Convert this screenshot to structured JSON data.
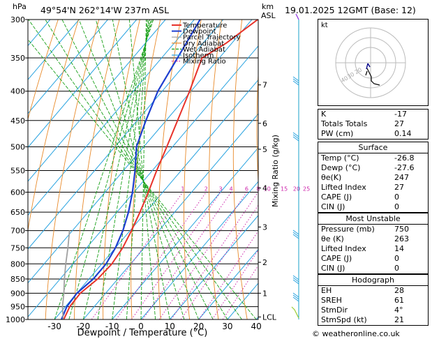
{
  "header": {
    "location": "49°54'N  262°14'W  237m  ASL",
    "datetime": "19.01.2025  12GMT  (Base: 12)",
    "hpa_label": "hPa",
    "km_label": "km",
    "asl_label": "ASL"
  },
  "chart_data": {
    "type": "line",
    "title": "",
    "xlabel": "Dewpoint / Temperature (°C)",
    "ylabel": "Mixing Ratio (g/kg)",
    "xlim": [
      -40,
      40
    ],
    "ylim_hpa": [
      1000,
      300
    ],
    "pressure_levels": [
      300,
      350,
      400,
      450,
      500,
      550,
      600,
      650,
      700,
      750,
      800,
      850,
      900,
      950,
      1000
    ],
    "temp_ticks": [
      -30,
      -20,
      -10,
      0,
      10,
      20,
      30,
      40
    ],
    "km_ticks": [
      {
        "label": "7",
        "p": 390
      },
      {
        "label": "6",
        "p": 455
      },
      {
        "label": "5",
        "p": 505
      },
      {
        "label": "4",
        "p": 590
      },
      {
        "label": "3",
        "p": 690
      },
      {
        "label": "2",
        "p": 795
      },
      {
        "label": "1",
        "p": 900
      },
      {
        "label": "LCL",
        "p": 990
      }
    ],
    "mixing_ratio_labels": [
      "1",
      "2",
      "3",
      "4",
      "6",
      "8",
      "10",
      "15",
      "20",
      "25"
    ],
    "mixing_ratio_values": [
      1,
      2,
      3,
      4,
      6,
      8,
      10,
      15,
      20,
      25
    ],
    "legend": [
      "Temperature",
      "Dewpoint",
      "Parcel Trajectory",
      "Dry Adiabat",
      "Wet Adiabat",
      "Isotherm",
      "Mixing Ratio"
    ],
    "legend_placement": "top",
    "series": [
      {
        "name": "Temperature",
        "color": "#e8322a",
        "points": [
          [
            1000,
            -26.8
          ],
          [
            950,
            -28.5
          ],
          [
            900,
            -28.8
          ],
          [
            850,
            -27.0
          ],
          [
            800,
            -26.5
          ],
          [
            750,
            -27.5
          ],
          [
            700,
            -29.5
          ],
          [
            650,
            -32.0
          ],
          [
            600,
            -35.0
          ],
          [
            550,
            -38.5
          ],
          [
            500,
            -42.0
          ],
          [
            450,
            -46.0
          ],
          [
            400,
            -50.5
          ],
          [
            350,
            -56.0
          ],
          [
            330,
            -52.0
          ],
          [
            300,
            -48.0
          ]
        ]
      },
      {
        "name": "Dewpoint",
        "color": "#1e3fd0",
        "points": [
          [
            1000,
            -27.6
          ],
          [
            950,
            -29.5
          ],
          [
            900,
            -30.0
          ],
          [
            850,
            -28.5
          ],
          [
            800,
            -28.5
          ],
          [
            750,
            -30.0
          ],
          [
            700,
            -32.5
          ],
          [
            650,
            -36.0
          ],
          [
            600,
            -40.5
          ],
          [
            550,
            -46.0
          ],
          [
            500,
            -52.5
          ],
          [
            450,
            -57.0
          ],
          [
            400,
            -61.5
          ],
          [
            350,
            -64.5
          ],
          [
            300,
            -68.0
          ]
        ]
      },
      {
        "name": "Parcel Trajectory",
        "color": "#a0a0a0",
        "points": [
          [
            1000,
            -27.0
          ],
          [
            950,
            -31.0
          ],
          [
            900,
            -34.5
          ],
          [
            850,
            -38.5
          ],
          [
            800,
            -42.5
          ],
          [
            750,
            -46.5
          ],
          [
            700,
            -51.0
          ]
        ]
      }
    ],
    "colors": {
      "dry_adiabat": "#e88a2a",
      "wet_adiabat": "#18a018",
      "isotherm": "#29a3e0",
      "mixing_ratio": "#cc22aa",
      "grid": "#000000"
    }
  },
  "hodograph": {
    "unit": "kt",
    "ring_labels": [
      "40",
      "30",
      "20"
    ]
  },
  "indices": {
    "k": {
      "label": "K",
      "value": "-17"
    },
    "totals": {
      "label": "Totals Totals",
      "value": "27"
    },
    "pw": {
      "label": "PW (cm)",
      "value": "0.14"
    }
  },
  "surface": {
    "title": "Surface",
    "rows": [
      {
        "label": "Temp (°C)",
        "value": "-26.8"
      },
      {
        "label": "Dewp (°C)",
        "value": "-27.6"
      },
      {
        "label": "θe(K)",
        "value": "247"
      },
      {
        "label": "Lifted Index",
        "value": "27"
      },
      {
        "label": "CAPE (J)",
        "value": "0"
      },
      {
        "label": "CIN (J)",
        "value": "0"
      }
    ]
  },
  "most_unstable": {
    "title": "Most Unstable",
    "rows": [
      {
        "label": "Pressure (mb)",
        "value": "750"
      },
      {
        "label": "θe (K)",
        "value": "263"
      },
      {
        "label": "Lifted Index",
        "value": "14"
      },
      {
        "label": "CAPE (J)",
        "value": "0"
      },
      {
        "label": "CIN (J)",
        "value": "0"
      }
    ]
  },
  "hodograph_table": {
    "title": "Hodograph",
    "rows": [
      {
        "label": "EH",
        "value": "28"
      },
      {
        "label": "SREH",
        "value": "61"
      },
      {
        "label": "StmDir",
        "value": "4°"
      },
      {
        "label": "StmSpd (kt)",
        "value": "21"
      }
    ]
  },
  "footer": {
    "copyright": "© weatheronline.co.uk"
  }
}
